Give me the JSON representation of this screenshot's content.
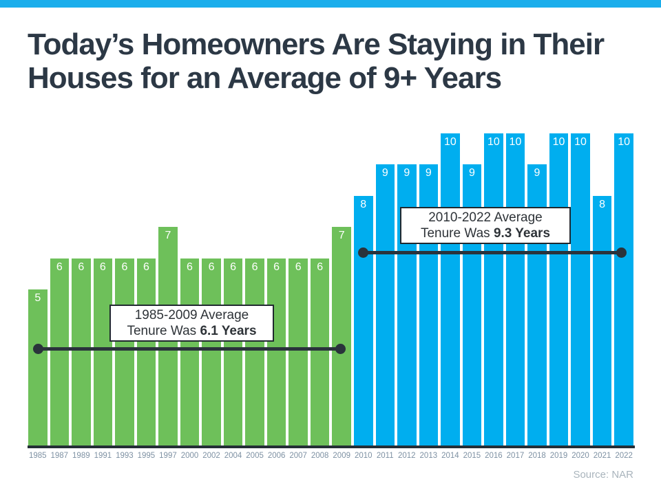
{
  "header": {
    "title_line1": "Today’s Homeowners Are Staying in Their",
    "title_line2": "Houses for an Average of 9+ Years"
  },
  "source": {
    "label": "Source: NAR"
  },
  "colors": {
    "accent_strip": "#1BAEEC",
    "green_bar": "#6EC05A",
    "blue_bar": "#00AEEF",
    "axis_line": "#242E36",
    "dumbbell": "#2A333B",
    "title_text": "#2C3845",
    "year_label": "#7E91A3",
    "source_text": "#A9B4BC",
    "bar_value_text": "#FFFFFF",
    "annotation_border": "#20282F",
    "annotation_text": "#2E3338"
  },
  "annotations": [
    {
      "line1": "1985-2009 Average",
      "line2_prefix": "Tenure Was ",
      "line2_bold": "6.1 Years"
    },
    {
      "line1": "2010-2022 Average",
      "line2_prefix": "Tenure Was ",
      "line2_bold": "9.3 Years"
    }
  ],
  "chart_data": {
    "type": "bar",
    "title": "Today’s Homeowners Are Staying in Their Houses for an Average of 9+ Years",
    "xlabel": "",
    "ylabel": "",
    "ylim": [
      0,
      10
    ],
    "grid": false,
    "data_labels": true,
    "legend": "none",
    "categories": [
      "1985",
      "1987",
      "1989",
      "1991",
      "1993",
      "1995",
      "1997",
      "2000",
      "2002",
      "2004",
      "2005",
      "2006",
      "2007",
      "2008",
      "2009",
      "2010",
      "2011",
      "2012",
      "2013",
      "2014",
      "2015",
      "2016",
      "2017",
      "2018",
      "2019",
      "2020",
      "2021",
      "2022"
    ],
    "values": [
      5,
      6,
      6,
      6,
      6,
      6,
      7,
      6,
      6,
      6,
      6,
      6,
      6,
      6,
      7,
      8,
      9,
      9,
      9,
      10,
      9,
      10,
      10,
      9,
      10,
      10,
      8,
      10
    ],
    "segments": [
      {
        "name": "1985-2009",
        "color_key": "green_bar",
        "count": 15,
        "average": 6.1,
        "average_label": "1985-2009 Average Tenure Was 6.1 Years"
      },
      {
        "name": "2010-2022",
        "color_key": "blue_bar",
        "count": 13,
        "average": 9.3,
        "average_label": "2010-2022 Average Tenure Was 9.3 Years"
      }
    ],
    "source": "Source: NAR"
  }
}
